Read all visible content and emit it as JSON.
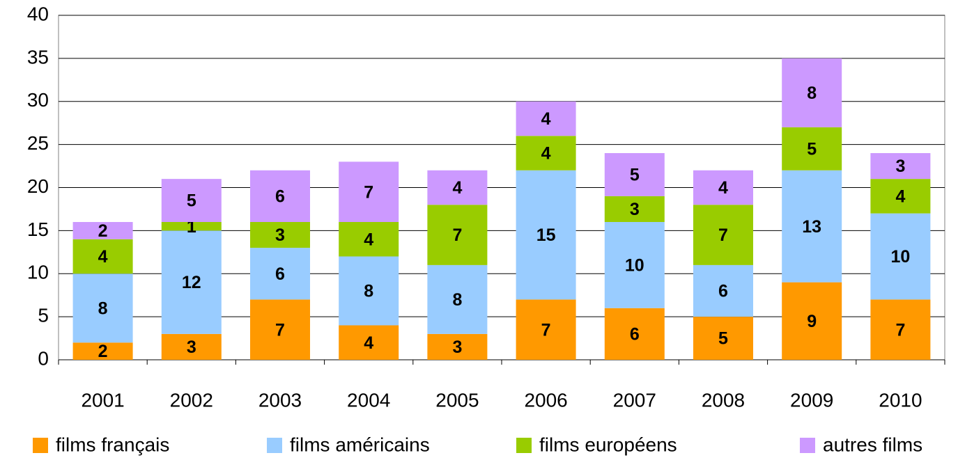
{
  "chart_data": {
    "type": "stacked-bar",
    "categories": [
      "2001",
      "2002",
      "2003",
      "2004",
      "2005",
      "2006",
      "2007",
      "2008",
      "2009",
      "2010"
    ],
    "series": [
      {
        "name": "films français",
        "color": "#ff9900",
        "values": [
          2,
          3,
          7,
          4,
          3,
          7,
          6,
          5,
          9,
          7
        ]
      },
      {
        "name": "films américains",
        "color": "#99ccff",
        "values": [
          8,
          12,
          6,
          8,
          8,
          15,
          10,
          6,
          13,
          10
        ]
      },
      {
        "name": "films européens",
        "color": "#99cc00",
        "values": [
          4,
          1,
          3,
          4,
          7,
          4,
          3,
          7,
          5,
          4
        ]
      },
      {
        "name": "autres films",
        "color": "#cc99ff",
        "values": [
          2,
          5,
          6,
          7,
          4,
          4,
          5,
          4,
          8,
          3
        ]
      }
    ],
    "ylim": [
      0,
      40
    ],
    "yticks": [
      0,
      5,
      10,
      15,
      20,
      25,
      30,
      35,
      40
    ],
    "grid": true,
    "legend": "bottom"
  }
}
